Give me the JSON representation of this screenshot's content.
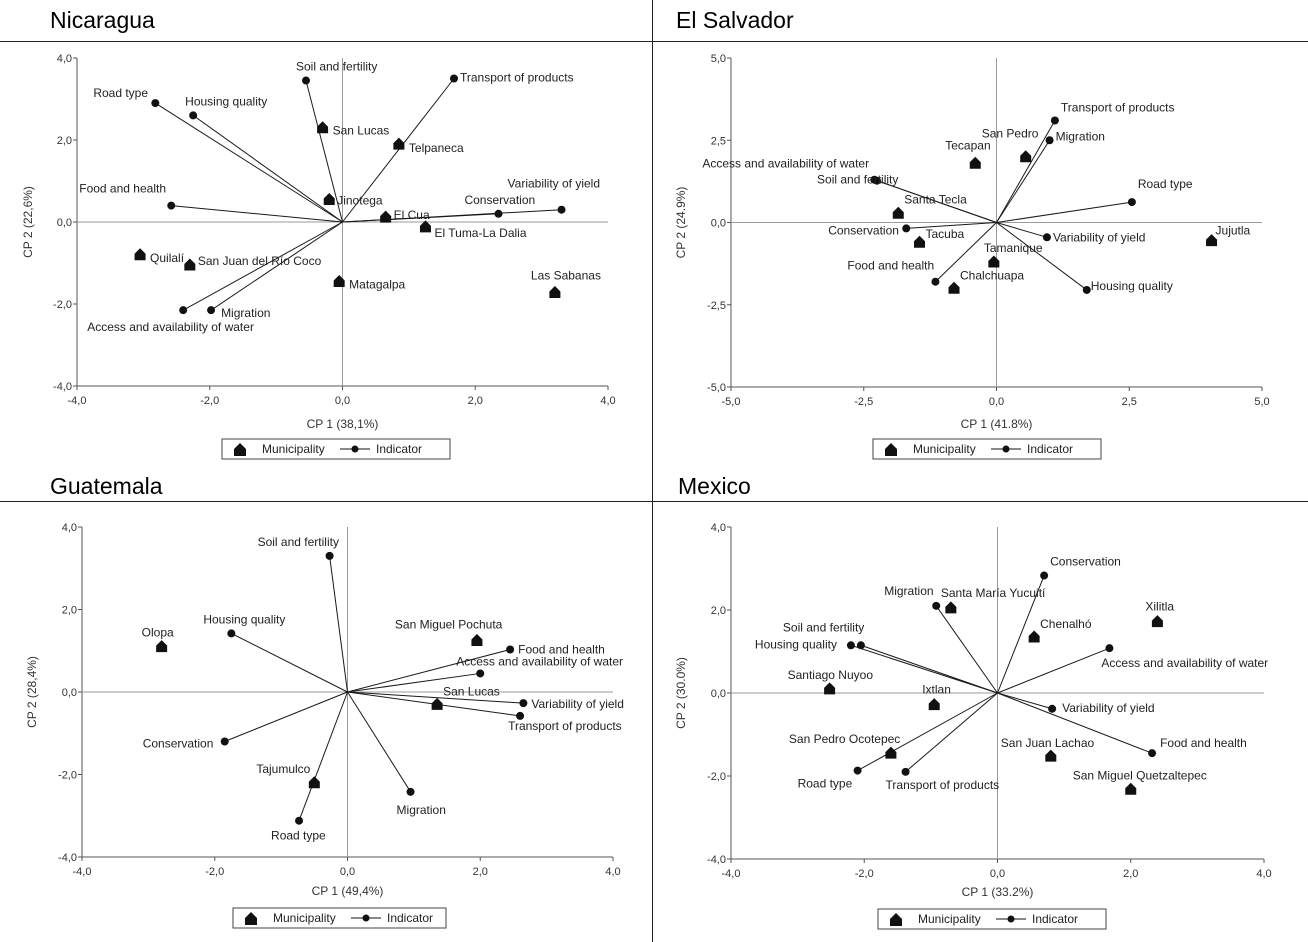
{
  "legend": {
    "municipality": "Municipality",
    "indicator": "Indicator"
  },
  "chart_data": [
    {
      "type": "scatter",
      "title": "Nicaragua",
      "xlabel": "CP 1 (38,1%)",
      "ylabel": "CP 2 (22,6%)",
      "xlim": [
        -4,
        4
      ],
      "ylim": [
        -4,
        4
      ],
      "xticks": [
        "-4,0",
        "-2,0",
        "0,0",
        "2,0",
        "4,0"
      ],
      "yticks": [
        "-4,0",
        "-2,0",
        "0,0",
        "2,0",
        "4,0"
      ],
      "municipalities": [
        {
          "name": "San Lucas",
          "x": -0.3,
          "y": 2.3
        },
        {
          "name": "Telpaneca",
          "x": 0.85,
          "y": 1.9
        },
        {
          "name": "Jinotega",
          "x": -0.2,
          "y": 0.55
        },
        {
          "name": "El Cua",
          "x": 0.65,
          "y": 0.12
        },
        {
          "name": "El Tuma-La Dalia",
          "x": 1.25,
          "y": -0.12
        },
        {
          "name": "Quilalí",
          "x": -3.05,
          "y": -0.8
        },
        {
          "name": "San Juan del Río Coco",
          "x": -2.3,
          "y": -1.05
        },
        {
          "name": "Matagalpa",
          "x": -0.05,
          "y": -1.45
        },
        {
          "name": "Las Sabanas",
          "x": 3.2,
          "y": -1.72
        }
      ],
      "indicators": [
        {
          "name": "Soil and fertility",
          "x": -0.55,
          "y": 3.45
        },
        {
          "name": "Transport of products",
          "x": 1.68,
          "y": 3.5
        },
        {
          "name": "Road type",
          "x": -2.82,
          "y": 2.9
        },
        {
          "name": "Housing quality",
          "x": -2.25,
          "y": 2.6
        },
        {
          "name": "Food and health",
          "x": -2.58,
          "y": 0.4
        },
        {
          "name": "Conservation",
          "x": 2.35,
          "y": 0.2
        },
        {
          "name": "Variability of yield",
          "x": 3.3,
          "y": 0.3
        },
        {
          "name": "Access and availability of water",
          "x": -2.4,
          "y": -2.15
        },
        {
          "name": "Migration",
          "x": -1.98,
          "y": -2.15
        }
      ]
    },
    {
      "type": "scatter",
      "title": "El Salvador",
      "xlabel": "CP 1 (41.8%)",
      "ylabel": "CP 2 (24.9%)",
      "xlim": [
        -5,
        5
      ],
      "ylim": [
        -5,
        5
      ],
      "xticks": [
        "-5,0",
        "-2,5",
        "0,0",
        "2,5",
        "5,0"
      ],
      "yticks": [
        "-5,0",
        "-2,5",
        "0,0",
        "2,5",
        "5,0"
      ],
      "municipalities": [
        {
          "name": "Tecapan",
          "x": -0.4,
          "y": 1.8
        },
        {
          "name": "San Pedro",
          "x": 0.55,
          "y": 2.0
        },
        {
          "name": "Santa Tecla",
          "x": -1.85,
          "y": 0.28
        },
        {
          "name": "Tacuba",
          "x": -1.45,
          "y": -0.6
        },
        {
          "name": "Tamanique",
          "x": -0.05,
          "y": -1.2
        },
        {
          "name": "Chalchuapa",
          "x": -0.8,
          "y": -2.0
        },
        {
          "name": "Jujutla",
          "x": 4.05,
          "y": -0.55
        }
      ],
      "indicators": [
        {
          "name": "Transport of products",
          "x": 1.1,
          "y": 3.1
        },
        {
          "name": "Migration",
          "x": 1.0,
          "y": 2.5
        },
        {
          "name": "Access and availability of water",
          "x": -2.3,
          "y": 1.3
        },
        {
          "name": "Soil and fertility",
          "x": -2.25,
          "y": 1.27
        },
        {
          "name": "Road type",
          "x": 2.55,
          "y": 0.62
        },
        {
          "name": "Conservation",
          "x": -1.7,
          "y": -0.18
        },
        {
          "name": "Variability of yield",
          "x": 0.95,
          "y": -0.45
        },
        {
          "name": "Food and health",
          "x": -1.15,
          "y": -1.8
        },
        {
          "name": "Housing quality",
          "x": 1.7,
          "y": -2.05
        }
      ]
    },
    {
      "type": "scatter",
      "title": "Guatemala",
      "xlabel": "CP 1 (49,4%)",
      "ylabel": "CP 2 (28,4%)",
      "xlim": [
        -4,
        4
      ],
      "ylim": [
        -4,
        4
      ],
      "xticks": [
        "-4,0",
        "-2,0",
        "0,0",
        "2,0",
        "4,0"
      ],
      "yticks": [
        "-4,0",
        "-2,0",
        "0,0",
        "2,0",
        "4,0"
      ],
      "municipalities": [
        {
          "name": "Olopa",
          "x": -2.8,
          "y": 1.1
        },
        {
          "name": "San Miguel Pochuta",
          "x": 1.95,
          "y": 1.25
        },
        {
          "name": "San Lucas",
          "x": 1.35,
          "y": -0.3
        },
        {
          "name": "Tajumulco",
          "x": -0.5,
          "y": -2.2
        }
      ],
      "indicators": [
        {
          "name": "Soil and fertility",
          "x": -0.27,
          "y": 3.3
        },
        {
          "name": "Housing quality",
          "x": -1.75,
          "y": 1.42
        },
        {
          "name": "Food and health",
          "x": 2.45,
          "y": 1.03
        },
        {
          "name": "Access and availability of water",
          "x": 2.0,
          "y": 0.45
        },
        {
          "name": "Variability of yield",
          "x": 2.65,
          "y": -0.27
        },
        {
          "name": "Transport of products",
          "x": 2.6,
          "y": -0.58
        },
        {
          "name": "Conservation",
          "x": -1.85,
          "y": -1.2
        },
        {
          "name": "Migration",
          "x": 0.95,
          "y": -2.42
        },
        {
          "name": "Road type",
          "x": -0.73,
          "y": -3.12
        }
      ]
    },
    {
      "type": "scatter",
      "title": "Mexico",
      "xlabel": "CP 1 (33.2%)",
      "ylabel": "CP 2 (30.0%)",
      "xlim": [
        -4,
        4
      ],
      "ylim": [
        -4,
        4
      ],
      "xticks": [
        "-4,0",
        "-2,0",
        "0,0",
        "2,0",
        "4,0"
      ],
      "yticks": [
        "-4,0",
        "-2,0",
        "0,0",
        "2,0",
        "4,0"
      ],
      "municipalities": [
        {
          "name": "Santa María Yucuití",
          "x": -0.7,
          "y": 2.05
        },
        {
          "name": "Chenalhó",
          "x": 0.55,
          "y": 1.35
        },
        {
          "name": "Xilitla",
          "x": 2.4,
          "y": 1.72
        },
        {
          "name": "Santiago Nuyoo",
          "x": -2.52,
          "y": 0.1
        },
        {
          "name": "Ixtlan",
          "x": -0.95,
          "y": -0.28
        },
        {
          "name": "San Pedro Ocotepec",
          "x": -1.6,
          "y": -1.45
        },
        {
          "name": "San Juan Lachao",
          "x": 0.8,
          "y": -1.52
        },
        {
          "name": "San Miguel Quetzaltepec",
          "x": 2.0,
          "y": -2.32
        }
      ],
      "indicators": [
        {
          "name": "Conservation",
          "x": 0.7,
          "y": 2.83
        },
        {
          "name": "Migration",
          "x": -0.92,
          "y": 2.1
        },
        {
          "name": "Soil and fertility",
          "x": -2.05,
          "y": 1.15
        },
        {
          "name": "Housing quality",
          "x": -2.2,
          "y": 1.15
        },
        {
          "name": "Access and availability of water",
          "x": 1.68,
          "y": 1.08
        },
        {
          "name": "Variability of yield",
          "x": 0.82,
          "y": -0.38
        },
        {
          "name": "Food and health",
          "x": 2.32,
          "y": -1.45
        },
        {
          "name": "Road type",
          "x": -2.1,
          "y": -1.87
        },
        {
          "name": "Transport of products",
          "x": -1.38,
          "y": -1.9
        }
      ]
    }
  ]
}
